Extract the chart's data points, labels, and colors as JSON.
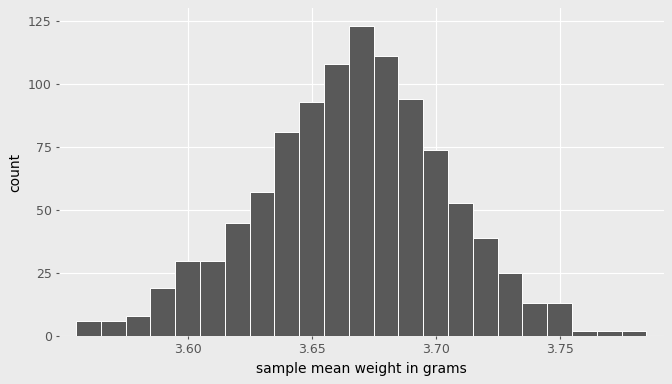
{
  "bin_left_edges": [
    3.555,
    3.565,
    3.575,
    3.585,
    3.595,
    3.605,
    3.615,
    3.625,
    3.635,
    3.645,
    3.655,
    3.665,
    3.675,
    3.685,
    3.695,
    3.705,
    3.715,
    3.725,
    3.735,
    3.745,
    3.755,
    3.765,
    3.775
  ],
  "counts": [
    6,
    6,
    8,
    19,
    30,
    30,
    45,
    57,
    81,
    93,
    108,
    123,
    111,
    94,
    74,
    53,
    39,
    25,
    13,
    13,
    2,
    2,
    2
  ],
  "bin_width": 0.01,
  "bar_color": "#595959",
  "bar_edge_color": "white",
  "bar_linewidth": 0.7,
  "background_color": "#EBEBEB",
  "grid_color": "white",
  "grid_linewidth": 0.8,
  "xlabel": "sample mean weight in grams",
  "ylabel": "count",
  "xlim": [
    3.548,
    3.792
  ],
  "ylim": [
    0,
    130
  ],
  "xticks": [
    3.6,
    3.65,
    3.7,
    3.75
  ],
  "yticks": [
    0,
    25,
    50,
    75,
    100,
    125
  ],
  "label_fontsize": 10,
  "tick_fontsize": 9,
  "tick_color": "#555555",
  "figsize": [
    6.72,
    3.84
  ],
  "dpi": 100
}
